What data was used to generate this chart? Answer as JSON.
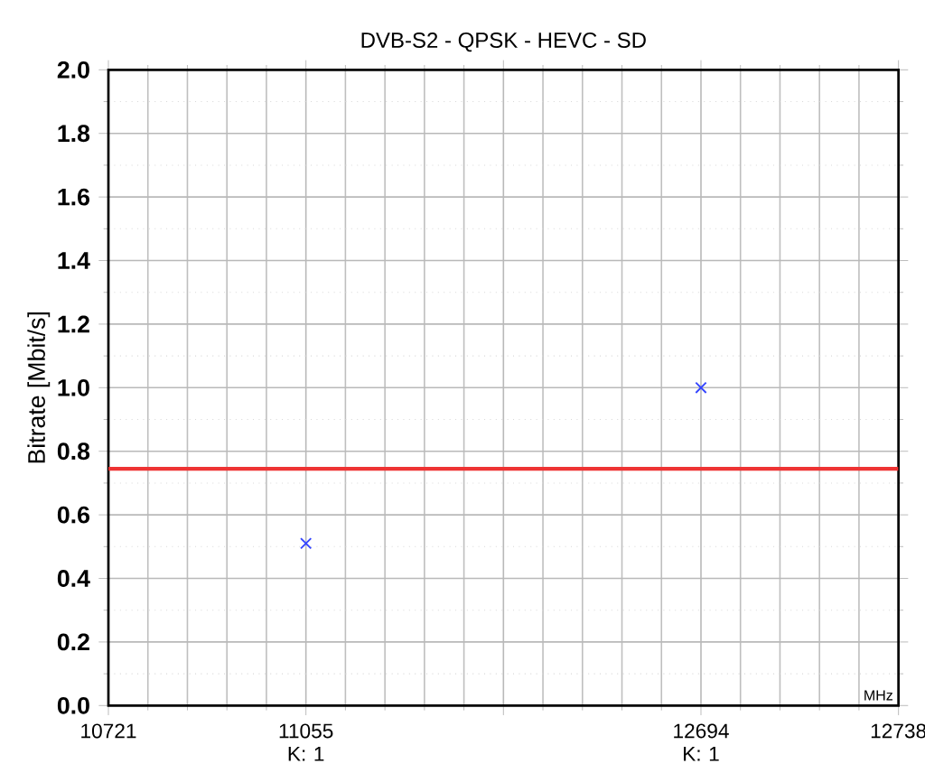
{
  "chart_data": {
    "type": "scatter",
    "title": "DVB-S2 - QPSK - HEVC - SD",
    "ylabel": "Bitrate [Mbit/s]",
    "categories": [
      "10721",
      "11055 K: 1",
      null,
      "12694 K: 1",
      "12738"
    ],
    "series": [
      {
        "color": "#3344ff",
        "values": [
          null,
          0.51,
          null,
          1.0,
          null
        ]
      }
    ],
    "marker": "cross",
    "ylim": [
      0,
      2.0
    ],
    "yticks": [
      {
        "value": 0,
        "label": "0.0"
      },
      0.2,
      0.4,
      0.6,
      0.8,
      {
        "value": 1,
        "label": "1.0"
      },
      1.2,
      1.4,
      1.6,
      1.8,
      {
        "value": 2,
        "label": "2.0"
      }
    ],
    "ref_lines": [
      {
        "axis": "y",
        "value": 0.745,
        "color": "#ee3333"
      }
    ],
    "annotations": [
      "MHz"
    ],
    "grid": true
  }
}
